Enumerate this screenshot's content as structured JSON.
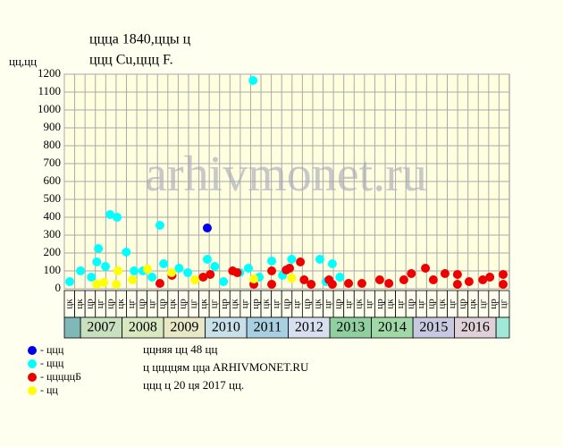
{
  "chart_data": {
    "type": "scatter",
    "title": "ццца 1840,ццы ц",
    "subtitle": "ццц Cu,ццц F.",
    "y_label": "цц,цц",
    "watermark": "arhivmonet.ru",
    "xlim": [
      2006.61,
      2017.32
    ],
    "ylim": [
      0,
      1200
    ],
    "yticks": [
      0,
      100,
      200,
      300,
      400,
      500,
      600,
      700,
      800,
      900,
      1000,
      1100,
      1200
    ],
    "grid": true,
    "years": [
      2007,
      2008,
      2009,
      2010,
      2011,
      2012,
      2013,
      2014,
      2015,
      2016
    ],
    "band_colors": [
      "#80b8b8",
      "#c8e0c0",
      "#d8e8c0",
      "#e8e8c8",
      "#c8e0e8",
      "#a8d0e0",
      "#d8e0f0",
      "#90d0a0",
      "#a0d8a8",
      "#c8c8e0",
      "#e0d0d8",
      "#a0e8d8"
    ],
    "quarter_labels": [
      "цк",
      "цк",
      "цр",
      "цг",
      "цр",
      "цк",
      "цг",
      "цр",
      "цг",
      "цр",
      "цк",
      "цр",
      "цг",
      "цк",
      "цг",
      "цр",
      "цк",
      "цг",
      "цр",
      "цк",
      "цг",
      "цр",
      "цг",
      "цр",
      "цк",
      "цг",
      "цр",
      "цг",
      "цк",
      "цг",
      "цр",
      "цк",
      "цг",
      "цр",
      "цг",
      "цр",
      "цк",
      "цг",
      "цр",
      "цк",
      "цг",
      "цр",
      "цг"
    ],
    "series": [
      {
        "name": "- ццц",
        "color": "#0000ee",
        "x": [
          2010.05
        ],
        "values": [
          340
        ]
      },
      {
        "name": "- ццц",
        "color": "#00ffff",
        "x": [
          2011.15,
          2007.71,
          2007.88,
          2008.91,
          2007.43,
          2008.1,
          2007.0,
          2006.74,
          2007.39,
          2007.6,
          2008.29,
          2008.5,
          2009.0,
          2009.37,
          2009.58,
          2010.05,
          2010.23,
          2010.83,
          2011.04,
          2011.6,
          2012.08,
          2012.76,
          2013.06,
          2013.24,
          2007.26,
          2008.72,
          2010.44,
          2011.3,
          2011.86,
          2012.91
        ],
        "values": [
          1165,
          415,
          400,
          355,
          225,
          205,
          100,
          40,
          150,
          125,
          100,
          100,
          140,
          115,
          90,
          165,
          125,
          90,
          115,
          155,
          165,
          165,
          140,
          65,
          65,
          65,
          40,
          65,
          75,
          40
        ]
      },
      {
        "name": "- цццццБ",
        "color": "#ee0000",
        "x": [
          2008.91,
          2009.2,
          2009.95,
          2010.12,
          2010.66,
          2010.77,
          2011.17,
          2011.6,
          2011.95,
          2012.03,
          2012.29,
          2012.38,
          2012.55,
          2012.98,
          2013.06,
          2013.45,
          2013.77,
          2014.2,
          2014.42,
          2014.78,
          2014.96,
          2015.3,
          2015.49,
          2015.77,
          2016.07,
          2016.35,
          2016.68,
          2016.85,
          2017.17,
          2017.17,
          2016.07,
          2011.6
        ],
        "values": [
          30,
          75,
          65,
          80,
          100,
          90,
          25,
          100,
          105,
          115,
          150,
          50,
          25,
          50,
          25,
          30,
          30,
          50,
          30,
          50,
          85,
          115,
          50,
          85,
          80,
          40,
          50,
          65,
          80,
          25,
          25,
          25
        ]
      },
      {
        "name": "- цц",
        "color": "#ffff00",
        "x": [
          2007.39,
          2007.56,
          2007.9,
          2008.25,
          2008.61,
          2009.19,
          2009.75,
          2011.17,
          2012.08,
          2007.86
        ],
        "values": [
          25,
          35,
          100,
          50,
          110,
          90,
          50,
          55,
          60,
          25
        ]
      }
    ],
    "notes": [
      "ццняя цц 48 цц",
      "ц ццццям ццa ARHIVMONET.RU",
      "ццц ц 20 ця 2017 цц."
    ]
  }
}
